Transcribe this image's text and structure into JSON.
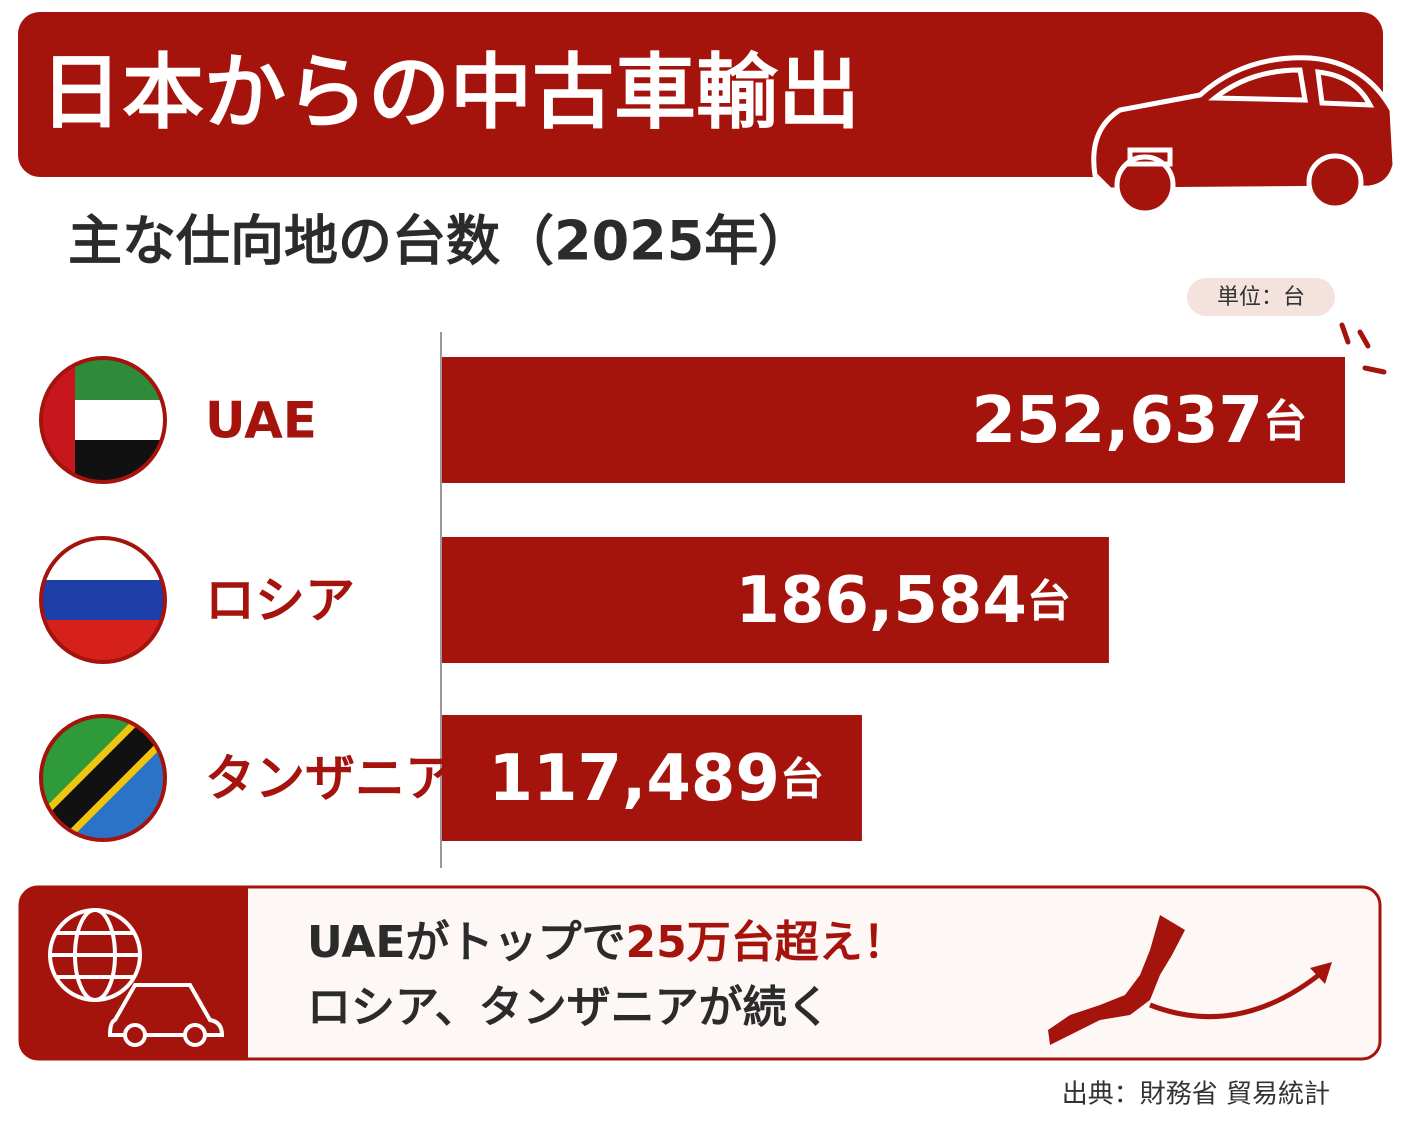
{
  "chart_data": {
    "type": "bar",
    "orientation": "horizontal",
    "title": "日本からの中古車輸出",
    "subtitle": "主な仕向地の台数（2025年）",
    "unit_label": "単位：台",
    "categories": [
      "UAE",
      "ロシア",
      "タンザニア"
    ],
    "values": [
      252637,
      186584,
      117489
    ],
    "value_labels": [
      "252,637台",
      "186,584台",
      "117,489台"
    ],
    "color": "#a5130d",
    "note": {
      "line1": [
        "UAEがトップで",
        "25万台超え！"
      ],
      "line2": "ロシア、タンザニアが続く"
    },
    "source": "出典：財務省 貿易統計"
  }
}
